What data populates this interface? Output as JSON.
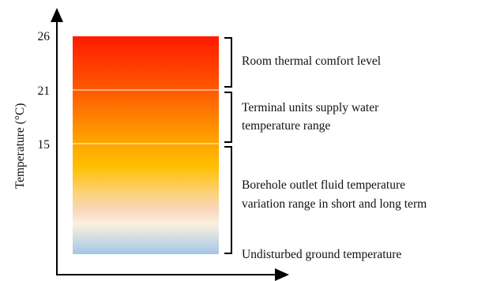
{
  "axis": {
    "ylabel": "Temperature (°C)"
  },
  "ticks": [
    {
      "value": "26"
    },
    {
      "value": "21"
    },
    {
      "value": "15"
    }
  ],
  "bands": [
    {
      "lines": [
        "Room thermal comfort level"
      ]
    },
    {
      "lines": [
        "Terminal units supply water",
        "temperature range"
      ]
    },
    {
      "lines": [
        "Borehole outlet fluid temperature",
        "variation range in short and long term"
      ]
    }
  ],
  "bottom_label": "Undisturbed ground temperature",
  "colors": {
    "top": "#ff1a00",
    "orange": "#ff8c00",
    "amber": "#ffbf00",
    "yellow": "#ffd23a",
    "peach": "#f9d7c0",
    "cream": "#fbf3e0",
    "blue": "#a3c6e8"
  }
}
